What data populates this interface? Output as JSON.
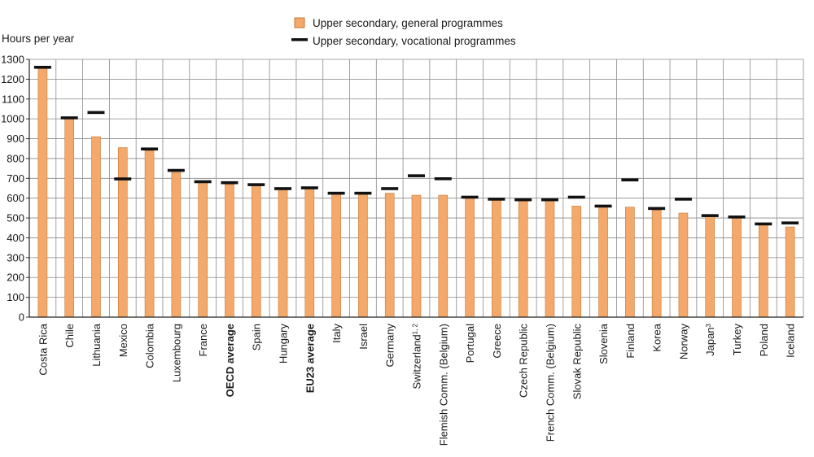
{
  "chart_data": {
    "type": "bar",
    "ylabel": "Hours per year",
    "ylim": [
      0,
      1300
    ],
    "ytick_step": 100,
    "grid": true,
    "legend_position": "top-center",
    "colors": {
      "bar": "#F4A96A",
      "bar_edge": "#C07A3E",
      "marker": "#111111",
      "grid": "#8a8a8a"
    },
    "categories": [
      {
        "label": "Costa Rica",
        "bold": false,
        "sup": ""
      },
      {
        "label": "Chile",
        "bold": false,
        "sup": ""
      },
      {
        "label": "Lithuania",
        "bold": false,
        "sup": ""
      },
      {
        "label": "Mexico",
        "bold": false,
        "sup": ""
      },
      {
        "label": "Colombia",
        "bold": false,
        "sup": ""
      },
      {
        "label": "Luxembourg",
        "bold": false,
        "sup": ""
      },
      {
        "label": "France",
        "bold": false,
        "sup": ""
      },
      {
        "label": "OECD average",
        "bold": true,
        "sup": ""
      },
      {
        "label": "Spain",
        "bold": false,
        "sup": ""
      },
      {
        "label": "Hungary",
        "bold": false,
        "sup": ""
      },
      {
        "label": "EU23 average",
        "bold": true,
        "sup": ""
      },
      {
        "label": "Italy",
        "bold": false,
        "sup": ""
      },
      {
        "label": "Israel",
        "bold": false,
        "sup": ""
      },
      {
        "label": "Germany",
        "bold": false,
        "sup": ""
      },
      {
        "label": "Switzerland",
        "bold": false,
        "sup": "1, 2"
      },
      {
        "label": "Flemish Comm. (Belgium)",
        "bold": false,
        "sup": ""
      },
      {
        "label": "Portugal",
        "bold": false,
        "sup": ""
      },
      {
        "label": "Greece",
        "bold": false,
        "sup": ""
      },
      {
        "label": "Czech Republic",
        "bold": false,
        "sup": ""
      },
      {
        "label": "French Comm. (Belgium)",
        "bold": false,
        "sup": ""
      },
      {
        "label": "Slovak Republic",
        "bold": false,
        "sup": ""
      },
      {
        "label": "Slovenia",
        "bold": false,
        "sup": ""
      },
      {
        "label": "Finland",
        "bold": false,
        "sup": ""
      },
      {
        "label": "Korea",
        "bold": false,
        "sup": ""
      },
      {
        "label": "Norway",
        "bold": false,
        "sup": ""
      },
      {
        "label": "Japan",
        "bold": false,
        "sup": "3"
      },
      {
        "label": "Turkey",
        "bold": false,
        "sup": ""
      },
      {
        "label": "Poland",
        "bold": false,
        "sup": ""
      },
      {
        "label": "Iceland",
        "bold": false,
        "sup": ""
      }
    ],
    "series": [
      {
        "name": "Upper secondary, general programmes",
        "kind": "bar",
        "values": [
          1260,
          1000,
          910,
          855,
          840,
          730,
          680,
          670,
          665,
          645,
          650,
          620,
          620,
          625,
          615,
          615,
          600,
          595,
          590,
          590,
          560,
          555,
          555,
          540,
          525,
          510,
          505,
          470,
          455
        ]
      },
      {
        "name": "Upper secondary, vocational programmes",
        "kind": "marker",
        "values": [
          1260,
          1005,
          1032,
          697,
          848,
          740,
          683,
          678,
          668,
          648,
          652,
          625,
          625,
          648,
          713,
          698,
          605,
          595,
          592,
          592,
          605,
          560,
          692,
          548,
          595,
          512,
          505,
          470,
          475
        ]
      }
    ]
  }
}
